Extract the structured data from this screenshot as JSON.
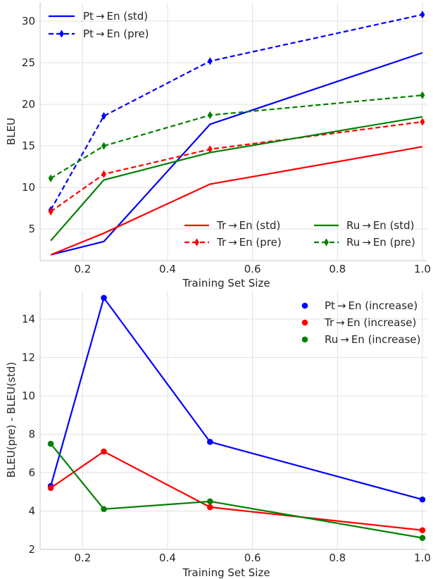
{
  "chart_data": [
    {
      "type": "line",
      "xlabel": "Training Set Size",
      "ylabel": "BLEU",
      "xlim": [
        0.1,
        1.01
      ],
      "ylim": [
        1.2,
        32.3
      ],
      "xticks": [
        "0.2",
        "0.4",
        "0.6",
        "0.8",
        "1.0"
      ],
      "yticks": [
        "5",
        "10",
        "15",
        "20",
        "25",
        "30"
      ],
      "grid": true,
      "x": [
        0.125,
        0.25,
        0.5,
        1.0
      ],
      "legends": [
        {
          "placement": "upper-left",
          "entries": [
            "Pt → En (std)",
            "Pt → En (pre)"
          ]
        },
        {
          "placement": "lower-right",
          "entries": [
            "Tr → En (std)",
            "Ru → En (std)",
            "Tr → En (pre)",
            "Ru → En (pre)"
          ]
        }
      ],
      "series": [
        {
          "name": "Pt → En (std)",
          "values": [
            1.9,
            3.5,
            17.6,
            26.2
          ],
          "color": "#0000ff",
          "style": "solid"
        },
        {
          "name": "Pt → En (pre)",
          "values": [
            7.3,
            18.6,
            25.2,
            30.8
          ],
          "color": "#0000ff",
          "style": "dashed"
        },
        {
          "name": "Tr → En (std)",
          "values": [
            1.9,
            4.5,
            10.4,
            14.9
          ],
          "color": "#ff0000",
          "style": "solid"
        },
        {
          "name": "Tr → En (pre)",
          "values": [
            7.1,
            11.6,
            14.6,
            17.9
          ],
          "color": "#ff0000",
          "style": "dashed"
        },
        {
          "name": "Ru → En (std)",
          "values": [
            3.6,
            10.9,
            14.2,
            18.5
          ],
          "color": "#008000",
          "style": "solid"
        },
        {
          "name": "Ru → En (pre)",
          "values": [
            11.1,
            15.0,
            18.7,
            21.1
          ],
          "color": "#008000",
          "style": "dashed"
        }
      ]
    },
    {
      "type": "line",
      "xlabel": "Training Set Size",
      "ylabel": "BLEU(pre) - BLEU(std)",
      "xlim": [
        0.1,
        1.01
      ],
      "ylim": [
        2.0,
        15.5
      ],
      "xticks": [
        "0.2",
        "0.4",
        "0.6",
        "0.8",
        "1.0"
      ],
      "yticks": [
        "2",
        "4",
        "6",
        "8",
        "10",
        "12",
        "14"
      ],
      "grid": true,
      "legend": "upper-right",
      "x": [
        0.125,
        0.25,
        0.5,
        1.0
      ],
      "series": [
        {
          "name": "Pt → En (increase)",
          "values": [
            5.3,
            15.1,
            7.6,
            4.6
          ],
          "color": "#0000ff"
        },
        {
          "name": "Tr → En (increase)",
          "values": [
            5.2,
            7.1,
            4.2,
            3.0
          ],
          "color": "#ff0000"
        },
        {
          "name": "Ru → En (increase)",
          "values": [
            7.5,
            4.1,
            4.5,
            2.6
          ],
          "color": "#008000"
        }
      ]
    }
  ]
}
